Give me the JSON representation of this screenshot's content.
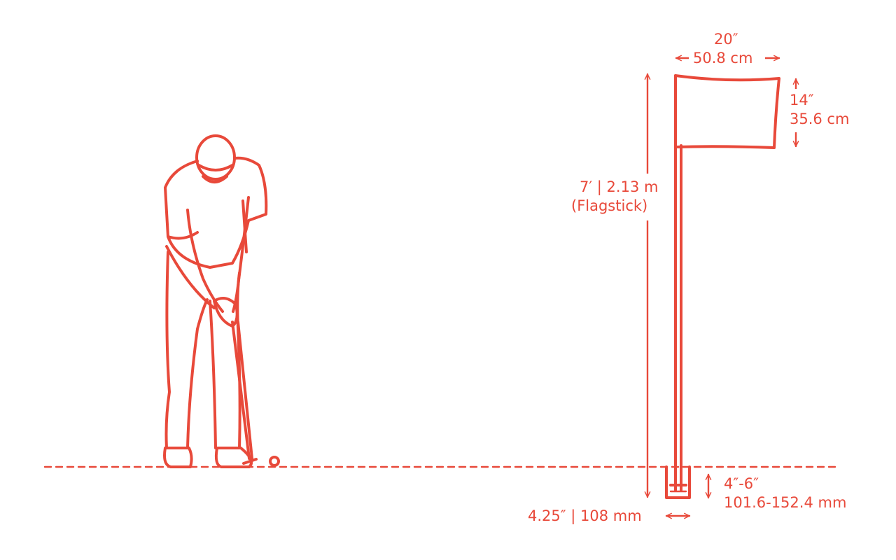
{
  "accent_color": "#e8493a",
  "labels": {
    "flag_width_in": "20″",
    "flag_width_cm": "50.8 cm",
    "flag_height_in": "14″",
    "flag_height_cm": "35.6 cm",
    "flagstick_height": "7′ | 2.13 m",
    "flagstick_caption": "(Flagstick)",
    "cup_depth_in": "4″-6″",
    "cup_depth_mm": "101.6-152.4 mm",
    "cup_diameter": "4.25″ | 108 mm"
  },
  "icons": {
    "golfer": "golfer-putting-illustration",
    "flag": "flagstick-illustration",
    "cup": "golf-cup-illustration",
    "ball": "golf-ball-icon"
  }
}
